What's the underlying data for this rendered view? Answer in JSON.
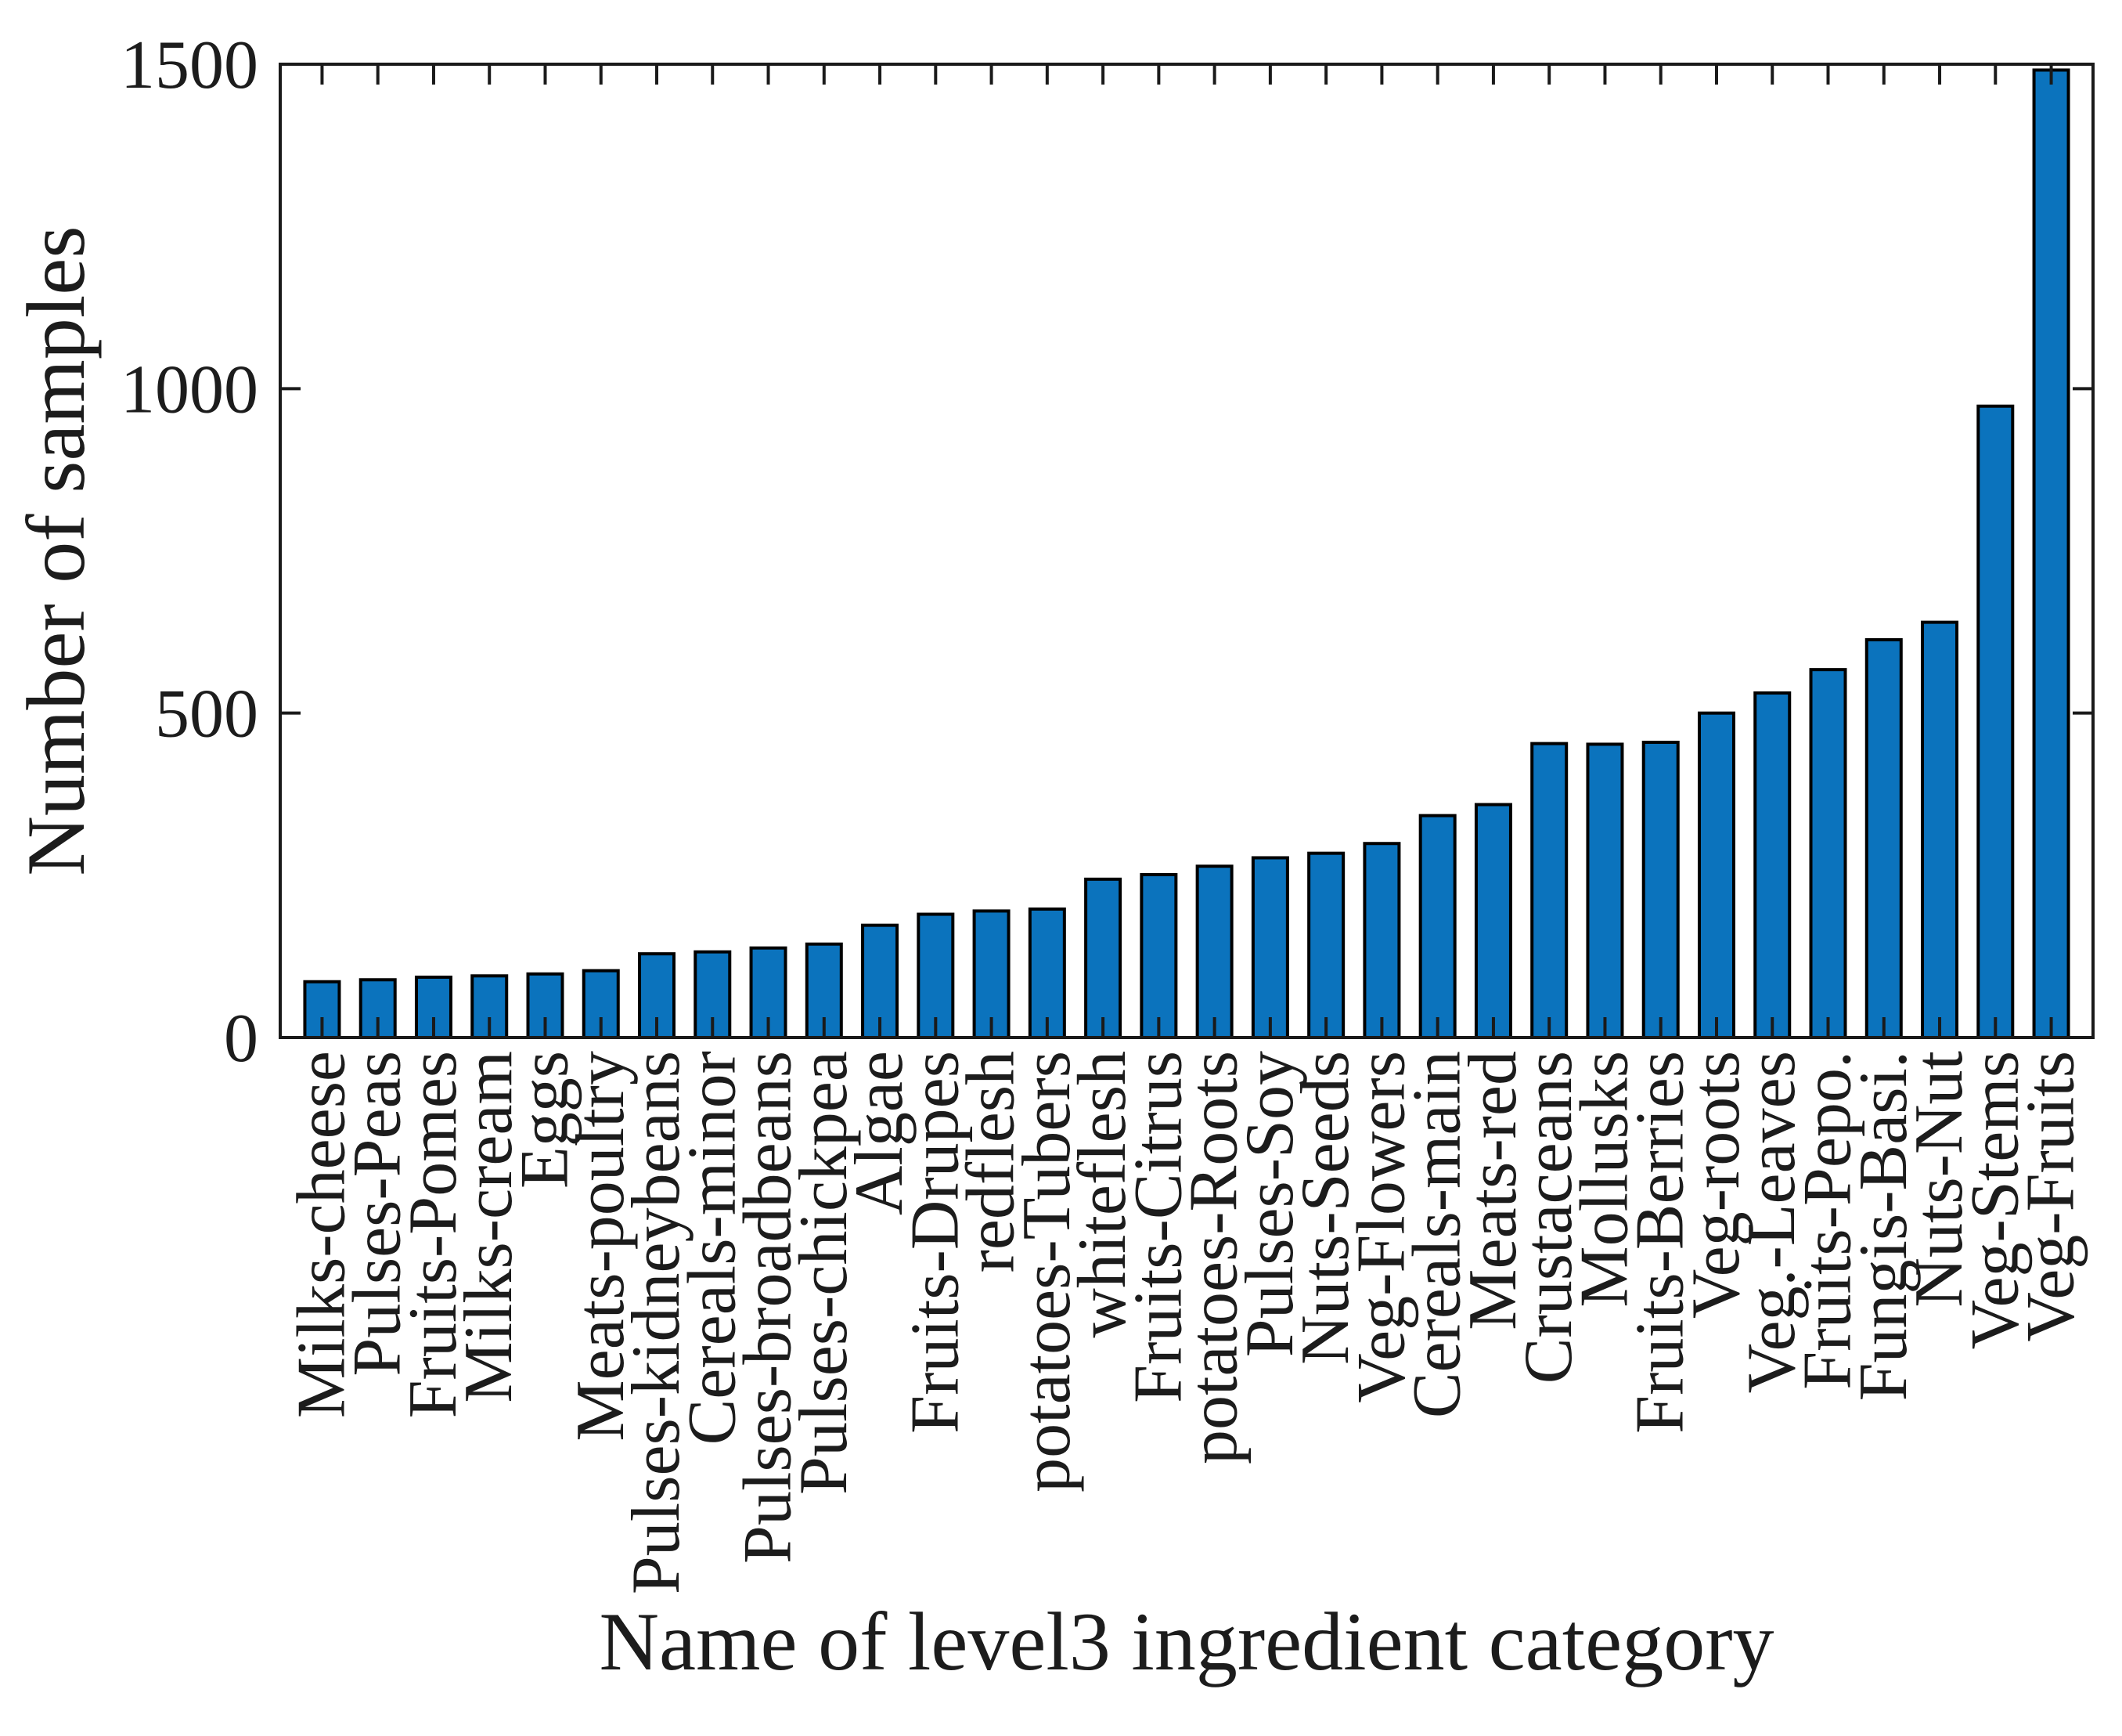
{
  "chart_data": {
    "type": "bar",
    "title": "",
    "xlabel": "Name of level3 ingredient category",
    "ylabel": "Number of samples",
    "categories": [
      "Milks-cheese",
      "Pulses-Peas",
      "Fruits-Pomes",
      "Milks-cream",
      "Eggs",
      "Meats-poultry",
      "Pulses-kidneybeans",
      "Cereals-minor",
      "Pulses-broadbeans",
      "Pulses-chickpea",
      "Algae",
      "Fruits-Drupes",
      "redflesh",
      "potatoes-Tubers",
      "whiteflesh",
      "Fruits-Citrus",
      "potatoes-Roots",
      "Pulses-Soy",
      "Nuts-Seeds",
      "Veg-Flowers",
      "Cereals-main",
      "Meats-red",
      "Crustaceans",
      "Mollusks",
      "Fruits-Berries",
      "Veg-roots",
      "Veg.-Leaves",
      "Fruits-Pepo.",
      "Fungis-Basi.",
      "Nuts-Nut",
      "Veg-Stems",
      "Veg-Fruits"
    ],
    "values": [
      86,
      89,
      93,
      95,
      98,
      103,
      129,
      132,
      138,
      144,
      173,
      190,
      195,
      198,
      244,
      251,
      264,
      277,
      284,
      299,
      342,
      359,
      453,
      452,
      455,
      500,
      531,
      567,
      613,
      640,
      973,
      1491
    ],
    "yticks": [
      0,
      500,
      1000,
      1500
    ],
    "ylim": [
      0,
      1500
    ],
    "grid": false,
    "legend": null,
    "bar_color": "#0b73bd",
    "bar_edge_color": "#000000",
    "axis_color": "#1a1a1a",
    "text_color": "#1c1c1c"
  }
}
